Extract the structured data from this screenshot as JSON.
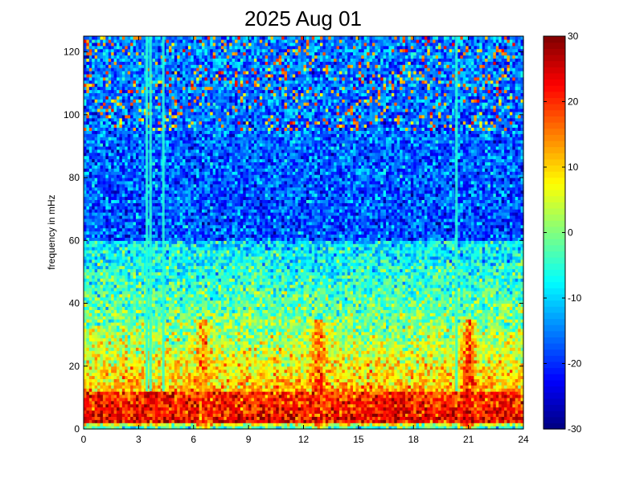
{
  "chart_data": {
    "type": "heatmap",
    "title": "2025 Aug 01",
    "xlabel": "",
    "ylabel": "frequency in mHz",
    "xlim": [
      0,
      24
    ],
    "ylim": [
      0,
      125
    ],
    "x_ticks": [
      0,
      3,
      6,
      9,
      12,
      15,
      18,
      21,
      24
    ],
    "x_tick_labels": [
      "0",
      "3",
      "6",
      "9",
      "12",
      "15",
      "18",
      "21",
      "24"
    ],
    "y_ticks": [
      0,
      20,
      40,
      60,
      80,
      100,
      120
    ],
    "y_tick_labels": [
      "0",
      "20",
      "40",
      "60",
      "80",
      "100",
      "120"
    ],
    "colorbar": {
      "colormap": "jet",
      "clim": [
        -30,
        30
      ],
      "ticks": [
        -30,
        -20,
        -10,
        0,
        10,
        20,
        30
      ],
      "tick_labels": [
        "-30",
        "-20",
        "-10",
        "0",
        "10",
        "20",
        "30"
      ]
    },
    "grid": false,
    "features": {
      "low_freq_band_mHz": [
        2,
        12
      ],
      "low_freq_band_level": 22,
      "mid_band_mHz": [
        15,
        32
      ],
      "mid_band_level": 12,
      "high_freq_level": -18,
      "vertical_artifact_hours": [
        3.45,
        3.65,
        4.35,
        20.35
      ],
      "bursts": [
        {
          "hour": 6.5,
          "level": 18
        },
        {
          "hour": 12.8,
          "level": 20
        },
        {
          "hour": 21.0,
          "level": 25
        }
      ]
    }
  }
}
